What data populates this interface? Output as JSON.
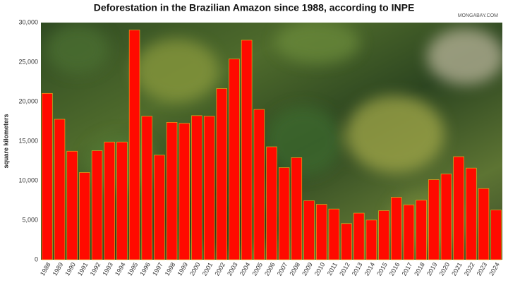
{
  "chart_data": {
    "type": "bar",
    "title": "Deforestation in the Brazilian Amazon since 1988, according to INPE",
    "source": "MONGABAY.COM",
    "y_label": "square kilometers",
    "categories": [
      "1988",
      "1989",
      "1990",
      "1991",
      "1992",
      "1993",
      "1994",
      "1995",
      "1996",
      "1997",
      "1998",
      "1999",
      "2000",
      "2001",
      "2002",
      "2003",
      "2004",
      "2005",
      "2006",
      "2007",
      "2008",
      "2009",
      "2010",
      "2011",
      "2012",
      "2013",
      "2014",
      "2015",
      "2016",
      "2017",
      "2018",
      "2019",
      "2020",
      "2021",
      "2022",
      "2023",
      "2024"
    ],
    "values": [
      21050,
      17770,
      13730,
      11030,
      13786,
      14896,
      14896,
      29059,
      18161,
      13227,
      17383,
      17259,
      18226,
      18165,
      21651,
      25396,
      27772,
      19014,
      14286,
      11651,
      12911,
      7464,
      7000,
      6418,
      4571,
      5891,
      5012,
      6207,
      7893,
      6947,
      7536,
      10129,
      10851,
      13038,
      11594,
      9001,
      6288
    ],
    "color": "#ff0a00",
    "ylim": [
      0,
      30000
    ],
    "yticks": [
      0,
      {
        "value": 5000,
        "label": "5,000"
      },
      {
        "value": 10000,
        "label": "10,000"
      },
      {
        "value": 15000,
        "label": "15,000"
      },
      {
        "value": 20000,
        "label": "20,000"
      },
      {
        "value": 25000,
        "label": "25,000"
      },
      {
        "value": 30000,
        "label": "30,000"
      }
    ],
    "grid": false
  }
}
